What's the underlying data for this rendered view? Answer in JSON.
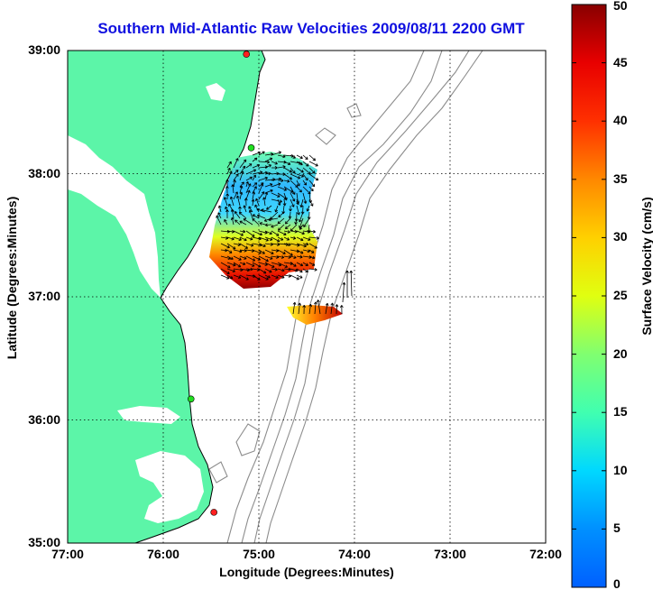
{
  "title": "Southern Mid-Atlantic Raw Velocities 2009/08/11 2200 GMT",
  "xlabel": "Longitude (Degrees:Minutes)",
  "ylabel": "Latitude (Degrees:Minutes)",
  "colorbar_label": "Surface Velocity (cm/s)",
  "x_ticks": [
    "77:00",
    "76:00",
    "75:00",
    "74:00",
    "73:00",
    "72:00"
  ],
  "y_ticks": [
    "39:00",
    "38:00",
    "37:00",
    "36:00",
    "35:00"
  ],
  "colorbar_ticks": [
    "0",
    "5",
    "10",
    "15",
    "20",
    "25",
    "30",
    "35",
    "40",
    "45",
    "50"
  ],
  "colors": {
    "land": "#5cf5a8",
    "coastline": "#000000",
    "bathymetry": "#8c8c8c",
    "grid": "#000000",
    "title": "#1010e0",
    "station": "#ff2020",
    "station_alt": "#20e020"
  },
  "chart_data": {
    "type": "heatmap",
    "xlim": [
      -77,
      -72
    ],
    "ylim": [
      35,
      39
    ],
    "clim": [
      0,
      50
    ],
    "colormap": "jet",
    "grid": true,
    "stations": [
      {
        "lon": -75.13,
        "lat": 38.97,
        "color": "red"
      },
      {
        "lon": -75.08,
        "lat": 38.21,
        "color": "green"
      },
      {
        "lon": -75.71,
        "lat": 36.17,
        "color": "green"
      },
      {
        "lon": -75.47,
        "lat": 35.25,
        "color": "red"
      }
    ]
  }
}
